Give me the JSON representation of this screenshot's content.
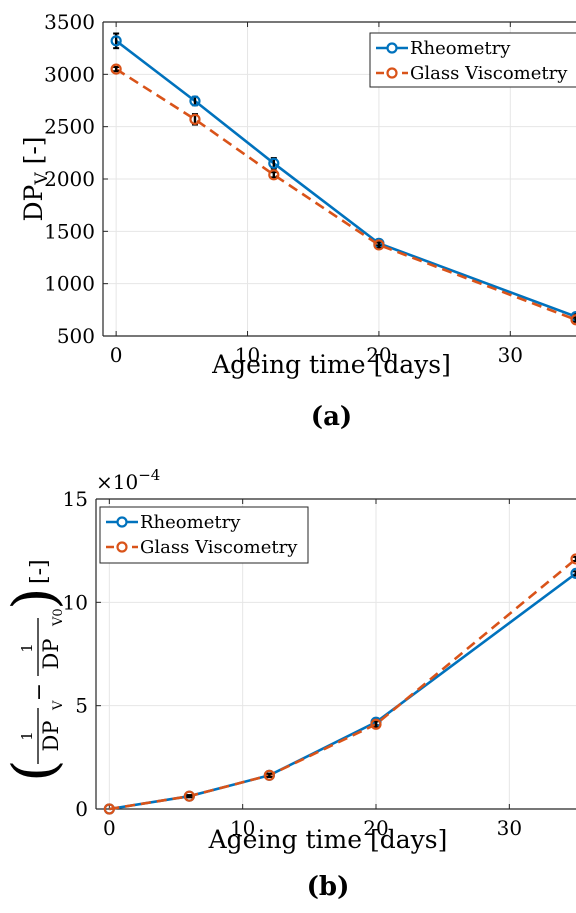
{
  "chart_data": [
    {
      "type": "line",
      "panel_label": "(a)",
      "xlabel": "Ageing time [days]",
      "ylabel": "DP",
      "ylabel_sub": "V",
      "ylabel_unit": " [-]",
      "xlim": [
        -1,
        35
      ],
      "ylim": [
        500,
        3500
      ],
      "xticks": [
        0,
        10,
        20,
        30
      ],
      "yticks": [
        500,
        1000,
        1500,
        2000,
        2500,
        3000,
        3500
      ],
      "grid": true,
      "legend_position": "top-right",
      "series": [
        {
          "name": "Rheometry",
          "color": "#0072BD",
          "line": "solid",
          "x": [
            0,
            6,
            12,
            20,
            35
          ],
          "y": [
            3320,
            2745,
            2150,
            1385,
            685
          ],
          "err": [
            70,
            40,
            50,
            20,
            30
          ]
        },
        {
          "name": "Glass Viscometry",
          "color": "#D95319",
          "line": "dashed",
          "x": [
            0,
            6,
            12,
            20,
            35
          ],
          "y": [
            3050,
            2570,
            2040,
            1370,
            655
          ],
          "err": [
            20,
            50,
            25,
            30,
            20
          ]
        }
      ]
    },
    {
      "type": "line",
      "panel_label": "(b)",
      "xlabel": "Ageing time [days]",
      "ylabel_unit": " [-]",
      "exponent_label": "×10",
      "exponent_power": "−4",
      "xlim": [
        -1,
        35
      ],
      "ylim": [
        0,
        15
      ],
      "xticks": [
        0,
        10,
        20,
        30
      ],
      "yticks": [
        0,
        5,
        10,
        15
      ],
      "grid": true,
      "legend_position": "top-left",
      "series": [
        {
          "name": "Rheometry",
          "color": "#0072BD",
          "line": "solid",
          "x": [
            0,
            6,
            12,
            20,
            35
          ],
          "y": [
            0,
            0.62,
            1.63,
            4.2,
            11.4
          ],
          "err": [
            0,
            0.05,
            0.08,
            0.15,
            0.1
          ]
        },
        {
          "name": "Glass Viscometry",
          "color": "#D95319",
          "line": "dashed",
          "x": [
            0,
            6,
            12,
            20,
            35
          ],
          "y": [
            0,
            0.62,
            1.63,
            4.1,
            12.1
          ],
          "err": [
            0,
            0.05,
            0.08,
            0.15,
            0.1
          ]
        }
      ]
    }
  ]
}
